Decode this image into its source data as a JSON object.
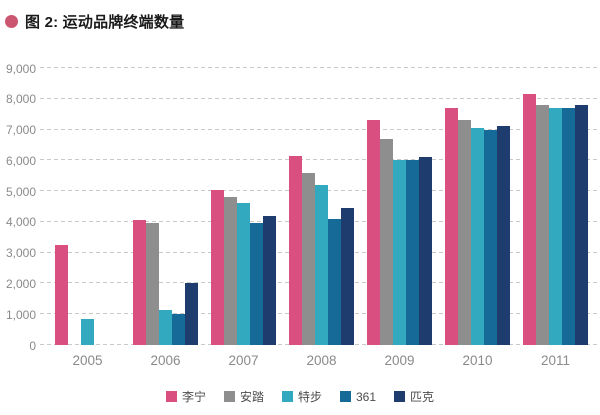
{
  "title": {
    "text": "图 2: 运动品牌终端数量",
    "bullet_color": "#cb5670"
  },
  "chart_data": {
    "type": "bar",
    "title": "运动品牌终端数量",
    "categories": [
      "2005",
      "2006",
      "2007",
      "2008",
      "2009",
      "2010",
      "2011"
    ],
    "series": [
      {
        "name": "李宁",
        "color": "#d94f7f",
        "values": [
          3250,
          4050,
          5050,
          6150,
          7300,
          7700,
          8150
        ]
      },
      {
        "name": "安踏",
        "color": "#8e8e8e",
        "values": [
          0,
          3950,
          4800,
          5600,
          6700,
          7300,
          7800
        ]
      },
      {
        "name": "特步",
        "color": "#33a9c0",
        "values": [
          850,
          1150,
          4600,
          5200,
          6000,
          7050,
          7700
        ]
      },
      {
        "name": "361",
        "color": "#156a97",
        "values": [
          0,
          1000,
          3950,
          4100,
          6000,
          7000,
          7700
        ]
      },
      {
        "name": "匹克",
        "color": "#1e3c6e",
        "values": [
          0,
          2000,
          4200,
          4450,
          6100,
          7100,
          7800
        ]
      }
    ],
    "ylim": [
      0,
      9000
    ],
    "ytick_step": 1000,
    "ytick_labels": [
      "0",
      "1,000",
      "2,000",
      "3,000",
      "4,000",
      "5,000",
      "6,000",
      "7,000",
      "8,000",
      "9,000"
    ],
    "grid": "horizontal-dashed",
    "grid_color": "#c9c9c9",
    "axis_label_color": "#8a8a8a",
    "legend_position": "bottom",
    "xlabel": "",
    "ylabel": ""
  }
}
